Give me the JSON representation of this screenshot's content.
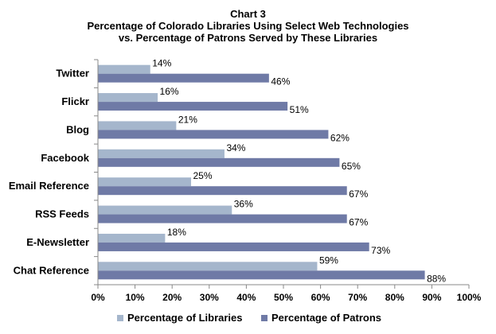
{
  "chart_data": {
    "type": "bar",
    "orientation": "horizontal",
    "title": [
      "Chart 3",
      "Percentage of Colorado Libraries Using  Select Web Technologies",
      "vs. Percentage of Patrons Served by These Libraries"
    ],
    "categories": [
      "Twitter",
      "Flickr",
      "Blog",
      "Facebook",
      "Email Reference",
      "RSS Feeds",
      "E-Newsletter",
      "Chat Reference"
    ],
    "series": [
      {
        "name": "Percentage of Libraries",
        "values": [
          14,
          16,
          21,
          34,
          25,
          36,
          18,
          59
        ],
        "color": "#a5b6cc"
      },
      {
        "name": "Percentage of Patrons",
        "values": [
          46,
          51,
          62,
          65,
          67,
          67,
          73,
          88
        ],
        "color": "#6f7aa6"
      }
    ],
    "xlim": [
      0,
      100
    ],
    "xticks": [
      "0%",
      "10%",
      "20%",
      "30%",
      "40%",
      "50%",
      "60%",
      "70%",
      "80%",
      "90%",
      "100%"
    ],
    "value_suffix": "%",
    "grid": false,
    "legend": "bottom"
  }
}
